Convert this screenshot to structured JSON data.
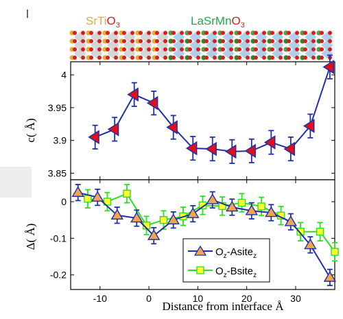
{
  "header": {
    "left_material": {
      "prefix": "SrTi",
      "base": "O",
      "sub": "3",
      "color": "#e9a64b"
    },
    "right_material": {
      "prefix": "LaSrMn",
      "base": "O",
      "sub": "3",
      "color": "#27a64b"
    }
  },
  "colors": {
    "panel_a_series": "#1f2fa8",
    "panel_a_marker": "#e0101a",
    "asite_line": "#1f2fa8",
    "asite_marker": "#f0a650",
    "bsite_line": "#2adf1f",
    "bsite_marker": "#ffff33",
    "atom_red": "#d42020",
    "atom_gold": "#e2b030",
    "atom_green": "#2a8a2a",
    "atom_blue": "#9bc8e8"
  },
  "chart_data": [
    {
      "type": "line",
      "ylabel": "c( Å)",
      "xlim": [
        -16,
        38
      ],
      "ylim": [
        3.84,
        4.02
      ],
      "yticks": [
        3.85,
        3.9,
        3.95,
        4.0
      ],
      "ytick_labels": [
        "3.85",
        "3.9",
        "3.95",
        "4"
      ],
      "grid": false,
      "series": [
        {
          "marker": "triangle-left",
          "x": [
            -11,
            -7,
            -3,
            1,
            5,
            9,
            13,
            17,
            21,
            25,
            29,
            33,
            37
          ],
          "y": [
            3.905,
            3.917,
            3.97,
            3.957,
            3.92,
            3.888,
            3.887,
            3.883,
            3.884,
            3.897,
            3.887,
            3.922,
            4.012
          ],
          "err": [
            0.018,
            0.018,
            0.018,
            0.018,
            0.018,
            0.018,
            0.018,
            0.018,
            0.018,
            0.018,
            0.018,
            0.018,
            0.018
          ]
        }
      ]
    },
    {
      "type": "line",
      "ylabel": "Δ( Å)",
      "xlabel": "Distance from interface Å",
      "xlim": [
        -16,
        38
      ],
      "ylim": [
        -0.24,
        0.06
      ],
      "xticks": [
        -10,
        0,
        10,
        20,
        30
      ],
      "xtick_labels": [
        "-10",
        "0",
        "10",
        "20",
        "30"
      ],
      "yticks": [
        -0.2,
        -0.1,
        0
      ],
      "ytick_labels": [
        "-0.2",
        "-0.1",
        "0"
      ],
      "grid": false,
      "legend_position": "bottom-right",
      "series": [
        {
          "name": "Oz-Asitez",
          "marker": "triangle-up",
          "x": [
            -14.5,
            -10.5,
            -6.5,
            -2.5,
            1,
            5,
            9,
            13,
            17,
            21,
            25,
            29,
            33,
            37
          ],
          "y": [
            0.025,
            0.012,
            -0.037,
            -0.045,
            -0.093,
            -0.05,
            -0.033,
            0.005,
            -0.015,
            -0.025,
            -0.03,
            -0.055,
            -0.118,
            -0.207
          ],
          "err": [
            0.022,
            0.022,
            0.022,
            0.022,
            0.022,
            0.022,
            0.022,
            0.022,
            0.022,
            0.022,
            0.022,
            0.022,
            0.022,
            0.022
          ]
        },
        {
          "name": "Oz-Bsitez",
          "marker": "square",
          "x": [
            -12.5,
            -8.5,
            -4.5,
            -0.5,
            3,
            7,
            11,
            15,
            19,
            23,
            27,
            31,
            35,
            38
          ],
          "y": [
            0.008,
            0.0,
            0.022,
            -0.065,
            -0.05,
            -0.04,
            -0.01,
            -0.012,
            -0.003,
            -0.013,
            -0.038,
            -0.082,
            -0.082,
            -0.137
          ],
          "err": [
            0.025,
            0.025,
            0.025,
            0.025,
            0.025,
            0.025,
            0.025,
            0.025,
            0.025,
            0.025,
            0.025,
            0.025,
            0.025,
            0.025
          ]
        }
      ],
      "legend": [
        {
          "base": "O",
          "sub1": "z",
          "mid": "-Asite",
          "sub2": "z"
        },
        {
          "base": "O",
          "sub1": "z",
          "mid": "-Bsite",
          "sub2": "z"
        }
      ]
    }
  ]
}
